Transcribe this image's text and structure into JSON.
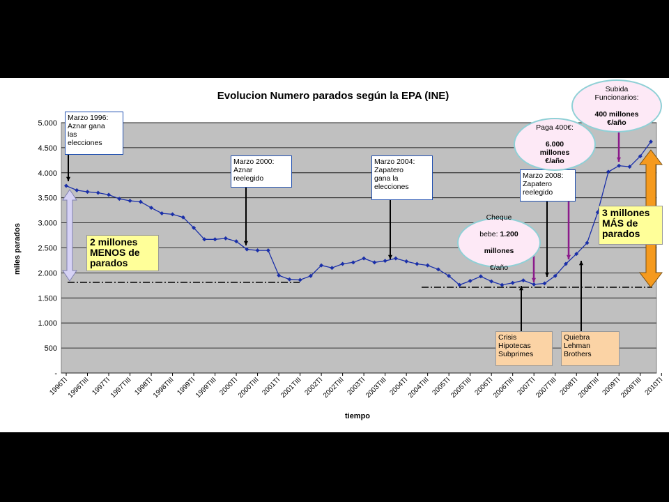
{
  "chart_data": {
    "type": "line",
    "title": "Evolucion Numero parados según la EPA (INE)",
    "xlabel": "tiempo",
    "ylabel": "miles parados",
    "ylim": [
      0,
      5000
    ],
    "ytick_labels": [
      "-",
      "500",
      "1.000",
      "1.500",
      "2.000",
      "2.500",
      "3.000",
      "3.500",
      "4.000",
      "4.500",
      "5.000"
    ],
    "x_labels": [
      "1996TI",
      "1996TIII",
      "1997TI",
      "1997TIII",
      "1998TI",
      "1998TIII",
      "1999TI",
      "1999TIII",
      "2000TI",
      "2000TIII",
      "2001TI",
      "2001TIII",
      "2002TI",
      "2002TIII",
      "2003TI",
      "2003TIII",
      "2004TI",
      "2004TIII",
      "2005TI",
      "2005TIII",
      "2006TI",
      "2006TIII",
      "2007TI",
      "2007TIII",
      "2008TI",
      "2008TIII",
      "2009TI",
      "2009TIII",
      "2010TI"
    ],
    "values": [
      3740,
      3650,
      3620,
      3600,
      3560,
      3480,
      3440,
      3420,
      3300,
      3190,
      3170,
      3110,
      2900,
      2670,
      2670,
      2690,
      2630,
      2470,
      2450,
      2450,
      1950,
      1870,
      1860,
      1940,
      2150,
      2100,
      2180,
      2210,
      2290,
      2210,
      2240,
      2290,
      2230,
      2180,
      2150,
      2070,
      1940,
      1760,
      1840,
      1930,
      1830,
      1760,
      1800,
      1850,
      1770,
      1790,
      1940,
      2180,
      2380,
      2600,
      3210,
      4020,
      4140,
      4120,
      4330,
      4620
    ],
    "series_color": "#1a2fa8",
    "plot_background": "#c0c0c0",
    "grid": true
  },
  "annotations": {
    "marzo1996": "Marzo 1996:\nAznar gana\nlas\nelecciones",
    "marzo2000": "Marzo 2000:\nAznar\nreelegido",
    "marzo2004": "Marzo 2004:\nZapatero\ngana la\nelecciones",
    "marzo2008": "Marzo 2008:\nZapatero\nreelegido",
    "crisis": "Crisis\nHipotecas\nSubprimes",
    "quiebra": "Quiebra\nLehman\nBrothers",
    "menos": "2 millones\nMENOS de\nparados",
    "mas": "3 millones\nMÁS de\nparados",
    "cheque_line1": "Cheque",
    "cheque_line2": "bebe: ",
    "cheque_bold1": "1.200",
    "cheque_bold2": "millones",
    "cheque_line3": "€/año",
    "paga_line1": "Paga 400€:",
    "paga_bold": "6.000\nmillones\n€/año",
    "subida_line1": "Subida\nFuncionarios:",
    "subida_bold": "400 millones\n€/año"
  }
}
